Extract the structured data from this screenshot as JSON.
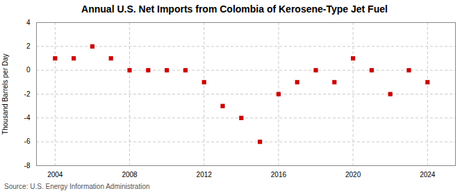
{
  "chart_data": {
    "type": "scatter",
    "title": "Annual U.S. Net Imports from Colombia of Kerosene-Type Jet Fuel",
    "ylabel": "Thousand Barrels per Day",
    "source": "Source: U.S. Energy Information Administration",
    "x": [
      2004,
      2005,
      2006,
      2007,
      2008,
      2009,
      2010,
      2011,
      2012,
      2013,
      2014,
      2015,
      2016,
      2017,
      2018,
      2019,
      2020,
      2021,
      2022,
      2023,
      2024
    ],
    "values": [
      1,
      1,
      2,
      1,
      0,
      0,
      0,
      0,
      -1,
      -3,
      -4,
      -6,
      -2,
      -1,
      0,
      -1,
      1,
      0,
      -2,
      0,
      -1
    ],
    "color": "#cc0000",
    "marker": "square",
    "xlim": [
      2003.0,
      2025.5
    ],
    "xticks": [
      2004,
      2008,
      2012,
      2016,
      2020,
      2024
    ],
    "ylim": [
      -8,
      4
    ],
    "yticks": [
      -8,
      -6,
      -4,
      -2,
      0,
      2,
      4
    ],
    "grid": true
  }
}
